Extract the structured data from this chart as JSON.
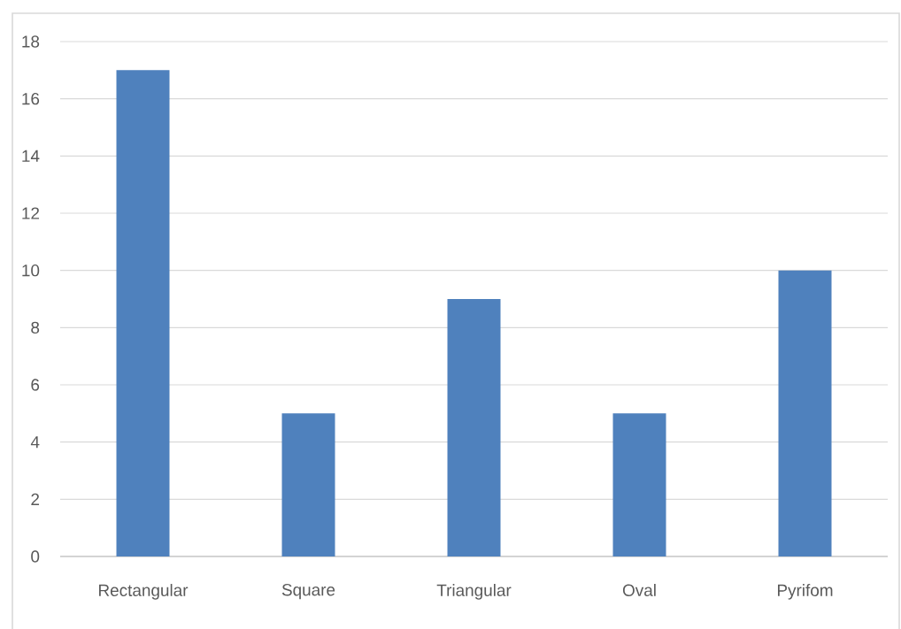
{
  "chart_data": {
    "type": "bar",
    "categories": [
      "Rectangular",
      "Square",
      "Triangular",
      "Oval",
      "Pyrifom"
    ],
    "values": [
      17,
      5,
      9,
      5,
      10
    ],
    "color": "#4f81bd",
    "ylim": [
      0,
      18
    ],
    "yticks": [
      0,
      2,
      4,
      6,
      8,
      10,
      12,
      14,
      16,
      18
    ],
    "grid": "y"
  }
}
